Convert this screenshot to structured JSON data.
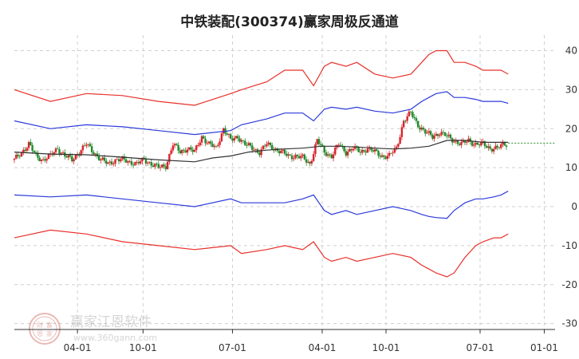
{
  "chart_data": {
    "type": "line",
    "title": "中铁装配(300374)赢家周极反通道",
    "y_ticks": [
      "40",
      "30",
      "20",
      "10",
      "0",
      "-10",
      "-20",
      "-30"
    ],
    "y_tick_values": [
      40,
      30,
      20,
      10,
      0,
      -10,
      -20,
      -30
    ],
    "ylim": [
      -31.5,
      44
    ],
    "x_tick_labels": [
      "04-01",
      "10-01",
      "07-01",
      "04-01",
      "10-01",
      "07-01",
      "01-01"
    ],
    "x_tick_positions": [
      17.5,
      35.7,
      60.5,
      85.4,
      103.1,
      129.2,
      147.0
    ],
    "xlim": [
      0,
      150
    ],
    "grid": true,
    "grid_style": "dashed",
    "colors": {
      "outer_band": "#e8302a",
      "inner_band": "#2b3ad9",
      "moving_average": "#333333",
      "candle_up": "#d9232b",
      "candle_down": "#1f8a2a",
      "last_price_line": "#1f8a2a"
    },
    "series": [
      {
        "role": "outer-upper",
        "x": [
          0,
          10,
          20,
          30,
          40,
          50,
          60,
          63,
          70,
          75,
          80,
          83,
          86,
          88,
          92,
          95,
          100,
          105,
          110,
          113,
          115,
          117,
          120,
          122,
          125,
          128,
          130,
          133,
          135,
          137
        ],
        "values": [
          30,
          27,
          29,
          28.5,
          27,
          26,
          29,
          30,
          32,
          35,
          35,
          31,
          36,
          37,
          36,
          37,
          34,
          33,
          34,
          37,
          39,
          40,
          40,
          37,
          37,
          36,
          35,
          35,
          35,
          34
        ]
      },
      {
        "role": "inner-upper",
        "x": [
          0,
          10,
          20,
          30,
          40,
          50,
          60,
          63,
          70,
          75,
          80,
          83,
          86,
          88,
          92,
          95,
          100,
          105,
          110,
          113,
          115,
          117,
          120,
          122,
          125,
          128,
          130,
          133,
          135,
          137
        ],
        "values": [
          22,
          20,
          21,
          20.5,
          19.5,
          18.5,
          19.5,
          21,
          22.5,
          24,
          24,
          22,
          25,
          25.5,
          25,
          25.5,
          24.5,
          24,
          25,
          27,
          28,
          29,
          29.5,
          28,
          28,
          27.5,
          27,
          27,
          27,
          26.5
        ]
      },
      {
        "role": "moving-average",
        "x": [
          0,
          10,
          20,
          30,
          40,
          50,
          55,
          60,
          65,
          70,
          75,
          80,
          85,
          90,
          95,
          100,
          105,
          110,
          115,
          120,
          125,
          130,
          137
        ],
        "values": [
          14,
          13.5,
          13.3,
          12.7,
          12,
          11.5,
          12.5,
          13,
          14,
          14.5,
          14.8,
          15,
          15.5,
          15.5,
          15.3,
          15,
          14.8,
          15,
          15.5,
          17,
          17,
          16.5,
          16.5
        ]
      },
      {
        "role": "inner-lower",
        "x": [
          0,
          10,
          20,
          30,
          40,
          50,
          60,
          63,
          70,
          75,
          80,
          83,
          86,
          88,
          92,
          95,
          100,
          105,
          110,
          113,
          115,
          117,
          120,
          122,
          125,
          128,
          130,
          133,
          135,
          137
        ],
        "values": [
          3,
          2.5,
          3,
          2,
          1,
          0,
          2,
          1,
          1,
          1,
          2,
          3,
          -1,
          -2,
          -1,
          -2,
          -1,
          0,
          -1,
          -2,
          -2.5,
          -2.8,
          -3,
          -1,
          1,
          2,
          2,
          2.5,
          3,
          4
        ]
      },
      {
        "role": "outer-lower",
        "x": [
          0,
          10,
          20,
          30,
          40,
          50,
          60,
          63,
          70,
          75,
          80,
          83,
          86,
          88,
          92,
          95,
          100,
          105,
          110,
          113,
          115,
          117,
          120,
          122,
          125,
          128,
          130,
          133,
          135,
          137
        ],
        "values": [
          -8,
          -6,
          -7,
          -9,
          -10,
          -11,
          -10,
          -12,
          -11,
          -10,
          -11,
          -9,
          -13,
          -14,
          -13,
          -14,
          -13,
          -12,
          -13,
          -15,
          -16,
          -17,
          -18,
          -17,
          -13,
          -10,
          -9,
          -8,
          -8,
          -7
        ]
      },
      {
        "role": "price",
        "x": [
          0,
          2,
          4,
          6,
          8,
          10,
          12,
          14,
          16,
          18,
          20,
          22,
          24,
          26,
          28,
          30,
          32,
          34,
          36,
          38,
          40,
          42,
          44,
          46,
          48,
          50,
          52,
          54,
          56,
          58,
          60,
          62,
          64,
          66,
          68,
          70,
          72,
          74,
          76,
          78,
          80,
          82,
          84,
          86,
          88,
          90,
          92,
          94,
          96,
          98,
          100,
          102,
          104,
          106,
          108,
          110,
          112,
          114,
          116,
          118,
          120,
          122,
          124,
          126,
          128,
          130,
          132,
          134,
          136,
          137
        ],
        "values": [
          12,
          14,
          16,
          13,
          12,
          13,
          15,
          13,
          12,
          14,
          16,
          14,
          12,
          11,
          12,
          12,
          11.5,
          11,
          12,
          11,
          10,
          10.5,
          16,
          14,
          15,
          14,
          18,
          16,
          15,
          20,
          17,
          18,
          16,
          15,
          14,
          16,
          15,
          14,
          13,
          13,
          12.5,
          11,
          17,
          14,
          13,
          16,
          14,
          15,
          14,
          15,
          14,
          13,
          13,
          15,
          22,
          24,
          21,
          19,
          18,
          19,
          18,
          17,
          16,
          17,
          16,
          16,
          15,
          15,
          16,
          16
        ]
      }
    ],
    "last_price": 16.3
  },
  "watermark": {
    "brand": "赢家江恩软件",
    "url": "www.360gann.com",
    "logo_chars": [
      "财",
      "富",
      "恩",
      "家"
    ]
  }
}
